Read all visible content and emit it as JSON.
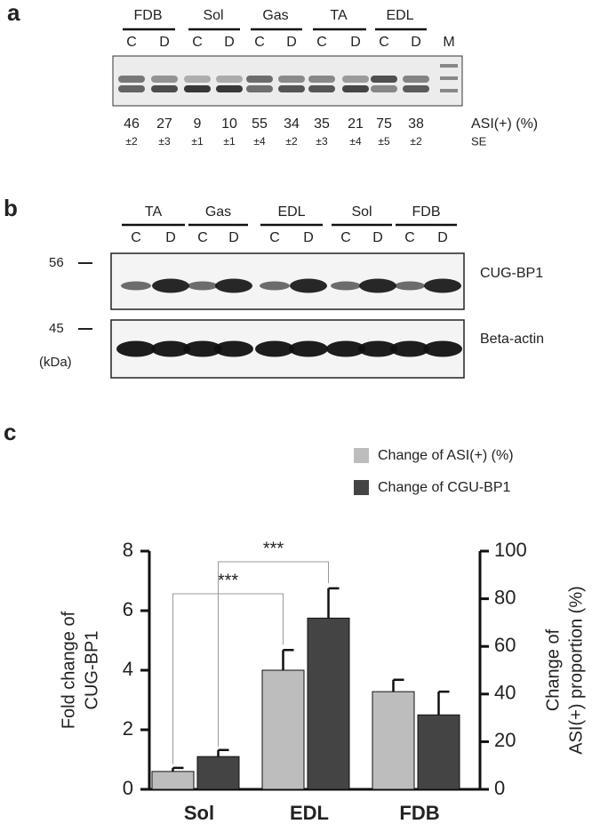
{
  "panel_a": {
    "label": "a",
    "tissues": [
      "FDB",
      "Sol",
      "Gas",
      "TA",
      "EDL"
    ],
    "lanes": [
      "C",
      "D",
      "C",
      "D",
      "C",
      "D",
      "C",
      "D",
      "C",
      "D"
    ],
    "marker": "M",
    "asi_percent": [
      46,
      27,
      9,
      10,
      55,
      34,
      35,
      21,
      75,
      38
    ],
    "se": [
      "±2",
      "±3",
      "±1",
      "±1",
      "±4",
      "±2",
      "±3",
      "±4",
      "±5",
      "±2"
    ],
    "asi_label": "ASI(+) (%)",
    "se_label": "SE"
  },
  "panel_b": {
    "label": "b",
    "tissues": [
      "TA",
      "Gas",
      "EDL",
      "Sol",
      "FDB"
    ],
    "lanes": [
      "C",
      "D",
      "C",
      "D",
      "C",
      "D",
      "C",
      "D",
      "C",
      "D"
    ],
    "size_markers": [
      56,
      45
    ],
    "unit": "(kDa)",
    "blots": [
      "CUG-BP1",
      "Beta-actin"
    ]
  },
  "panel_c_label": "c",
  "chart_data": {
    "type": "bar",
    "categories": [
      "Sol",
      "EDL",
      "FDB"
    ],
    "y_label": [
      "Fold change of",
      "CUG-BP1"
    ],
    "y2_label": [
      "Change of",
      "ASI(+) proportion (%)"
    ],
    "ylim": [
      0,
      8
    ],
    "yticks": [
      0,
      2,
      4,
      6,
      8
    ],
    "y2lim": [
      0,
      100
    ],
    "y2ticks": [
      0,
      20,
      40,
      60,
      80,
      100
    ],
    "series": [
      {
        "name": "Change of ASI(+) (%)",
        "color": "#bdbdbd",
        "axis": "y2",
        "values": [
          7.5,
          50,
          41
        ],
        "errors": [
          1.5,
          8.5,
          5
        ]
      },
      {
        "name": "Change of CGU-BP1",
        "color": "#444444",
        "values": [
          1.1,
          5.75,
          2.5
        ],
        "errors": [
          0.22,
          1.0,
          0.78
        ]
      }
    ],
    "annotations": [
      "***",
      "***"
    ]
  }
}
